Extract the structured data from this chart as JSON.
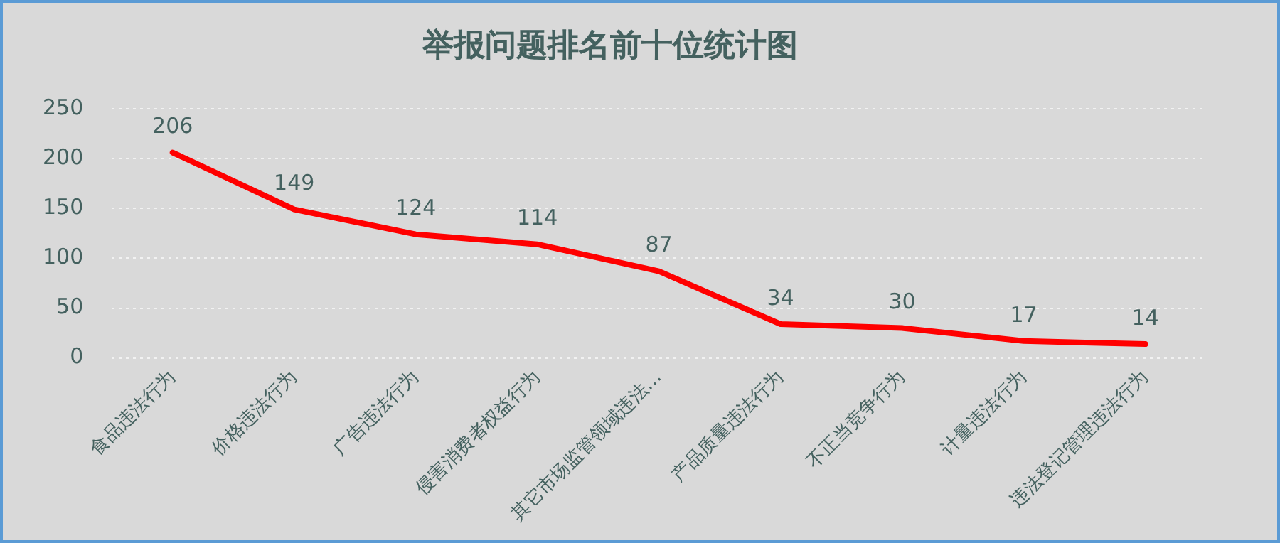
{
  "chart_data": {
    "type": "line",
    "title": "举报问题排名前十位统计图",
    "categories": [
      "食品违法行为",
      "价格违法行为",
      "广告违法行为",
      "侵害消费者权益行为",
      "其它市场监管领域违法…",
      "产品质量违法行为",
      "不正当竞争行为",
      "计量违法行为",
      "违法登记管理违法行为"
    ],
    "series": [
      {
        "color": "#ff0000",
        "values": [
          206,
          149,
          124,
          114,
          87,
          34,
          30,
          17,
          14
        ]
      }
    ],
    "ylim": [
      0,
      250
    ],
    "yticks": [
      0,
      50,
      100,
      150,
      200,
      250
    ],
    "grid": "y",
    "legend": false,
    "marker": "none",
    "data_labels": true
  }
}
